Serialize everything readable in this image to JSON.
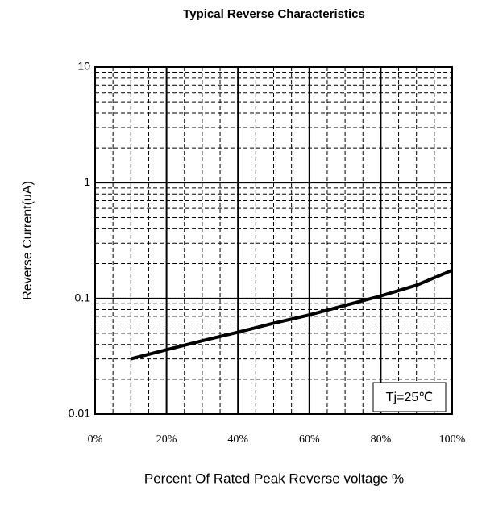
{
  "chart_data": {
    "type": "line",
    "title": "Typical Reverse Characteristics",
    "xlabel": "Percent Of Rated Peak Reverse voltage %",
    "ylabel": "Reverse Current(uA)",
    "annotation": "Tj=25℃",
    "x": [
      10,
      20,
      30,
      40,
      50,
      60,
      70,
      80,
      90,
      100
    ],
    "series": [
      {
        "name": "Tj=25℃",
        "color": "#000000",
        "values": [
          0.03,
          0.036,
          0.043,
          0.051,
          0.061,
          0.072,
          0.087,
          0.105,
          0.13,
          0.175
        ]
      }
    ],
    "xlim": [
      0,
      100
    ],
    "xticks": [
      {
        "value": 0,
        "label": "0%"
      },
      {
        "value": 20,
        "label": "20%"
      },
      {
        "value": 40,
        "label": "40%"
      },
      {
        "value": 60,
        "label": "60%"
      },
      {
        "value": 80,
        "label": "80%"
      },
      {
        "value": 100,
        "label": "100%"
      }
    ],
    "ylim": [
      0.01,
      10
    ],
    "yticks": [
      0.01,
      0.1,
      1,
      10
    ],
    "log_y": true,
    "grid": true,
    "minor_grid": true
  }
}
